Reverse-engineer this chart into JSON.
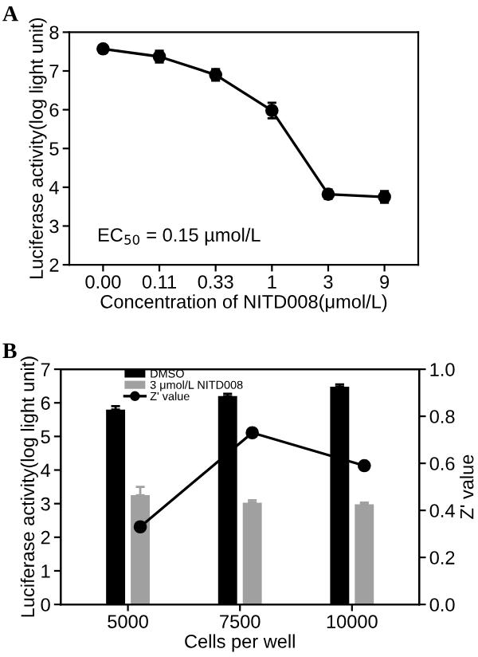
{
  "chart_data": [
    {
      "type": "line",
      "title": "A",
      "xlabel": "Concentration of NITD008(μmol/L)",
      "ylabel": "Luciferase activity(log light unit)",
      "categories": [
        "0.00",
        "0.11",
        "0.33",
        "1",
        "3",
        "9"
      ],
      "series": [
        {
          "color": "#000000",
          "values": [
            7.57,
            7.37,
            6.9,
            5.98,
            3.82,
            3.75
          ],
          "errors": [
            0.1,
            0.15,
            0.15,
            0.2,
            0.12,
            0.15
          ]
        }
      ],
      "ylim": [
        2,
        8
      ],
      "yticks": [
        2,
        3,
        4,
        5,
        6,
        7,
        8
      ],
      "marker": "circle",
      "line_style": "solid",
      "grid": false,
      "legend": false,
      "annotations": [
        "EC$_{50}$ = 0.15 µmol/L"
      ]
    },
    {
      "type": "bar",
      "title": "B",
      "xlabel": "Cells per well",
      "ylabel": "Luciferase activity(log light unit)",
      "y2label": "Z' value",
      "categories": [
        "5000",
        "7500",
        "10000"
      ],
      "series": [
        {
          "name": "DMSO",
          "color": "#000000",
          "values": [
            5.8,
            6.2,
            6.48
          ],
          "errors": [
            0.1,
            0.07,
            0.07
          ]
        },
        {
          "name": "3 μmol/L NITD008",
          "color": "#a0a0a0",
          "values": [
            3.25,
            3.03,
            2.98
          ],
          "errors": [
            0.25,
            0.07,
            0.05
          ]
        },
        {
          "name": "Z' value",
          "type": "line",
          "axis": "y2",
          "color": "#000000",
          "values": [
            0.33,
            0.73,
            0.59
          ],
          "marker": "circle"
        }
      ],
      "ylim": [
        0,
        7
      ],
      "yticks": [
        0,
        1,
        2,
        3,
        4,
        5,
        6,
        7
      ],
      "y2lim": [
        0,
        1
      ],
      "y2ticks": [
        {
          "value": 0,
          "label": "0.0"
        },
        {
          "value": 0.2,
          "label": "0.2"
        },
        {
          "value": 0.4,
          "label": "0.4"
        },
        {
          "value": 0.6,
          "label": "0.6"
        },
        {
          "value": 0.8,
          "label": "0.8"
        },
        {
          "value": 1,
          "label": "1.0"
        }
      ],
      "grid": false,
      "legend": "top left"
    }
  ]
}
